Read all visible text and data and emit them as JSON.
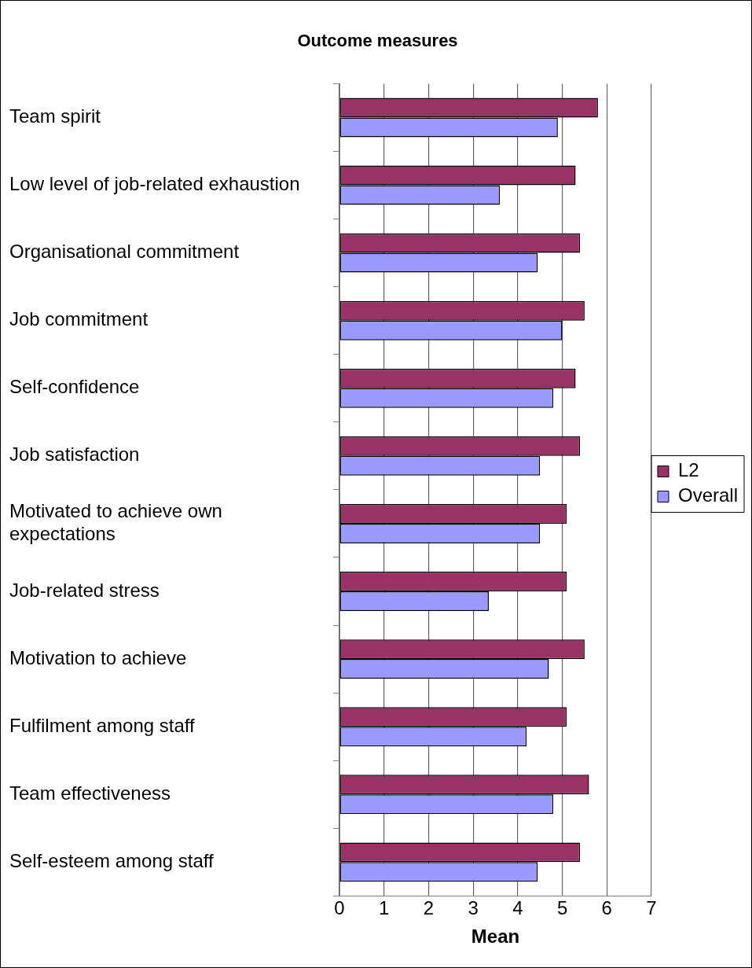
{
  "chart_data": {
    "type": "bar",
    "orientation": "horizontal",
    "title": "Outcome measures",
    "xlabel": "Mean",
    "categories": [
      "Team spirit",
      "Low level of job-related exhaustion",
      "Organisational commitment",
      "Job commitment",
      "Self-confidence",
      "Job satisfaction",
      "Motivated to achieve own expectations",
      "Job-related stress",
      "Motivation to achieve",
      "Fulfilment among staff",
      "Team effectiveness",
      "Self-esteem among staff"
    ],
    "series": [
      {
        "name": "L2",
        "color": "#993366",
        "values": [
          5.8,
          5.3,
          5.4,
          5.5,
          5.3,
          5.4,
          5.1,
          5.1,
          5.5,
          5.1,
          5.6,
          5.4
        ]
      },
      {
        "name": "Overall",
        "color": "#9999ff",
        "values": [
          4.9,
          3.6,
          4.45,
          5.0,
          4.8,
          4.5,
          4.5,
          3.35,
          4.7,
          4.2,
          4.8,
          4.45
        ]
      }
    ],
    "xlim": [
      0,
      7
    ],
    "xticks": [
      0,
      1,
      2,
      3,
      4,
      5,
      6,
      7
    ],
    "grid": "x",
    "legend": "right"
  }
}
